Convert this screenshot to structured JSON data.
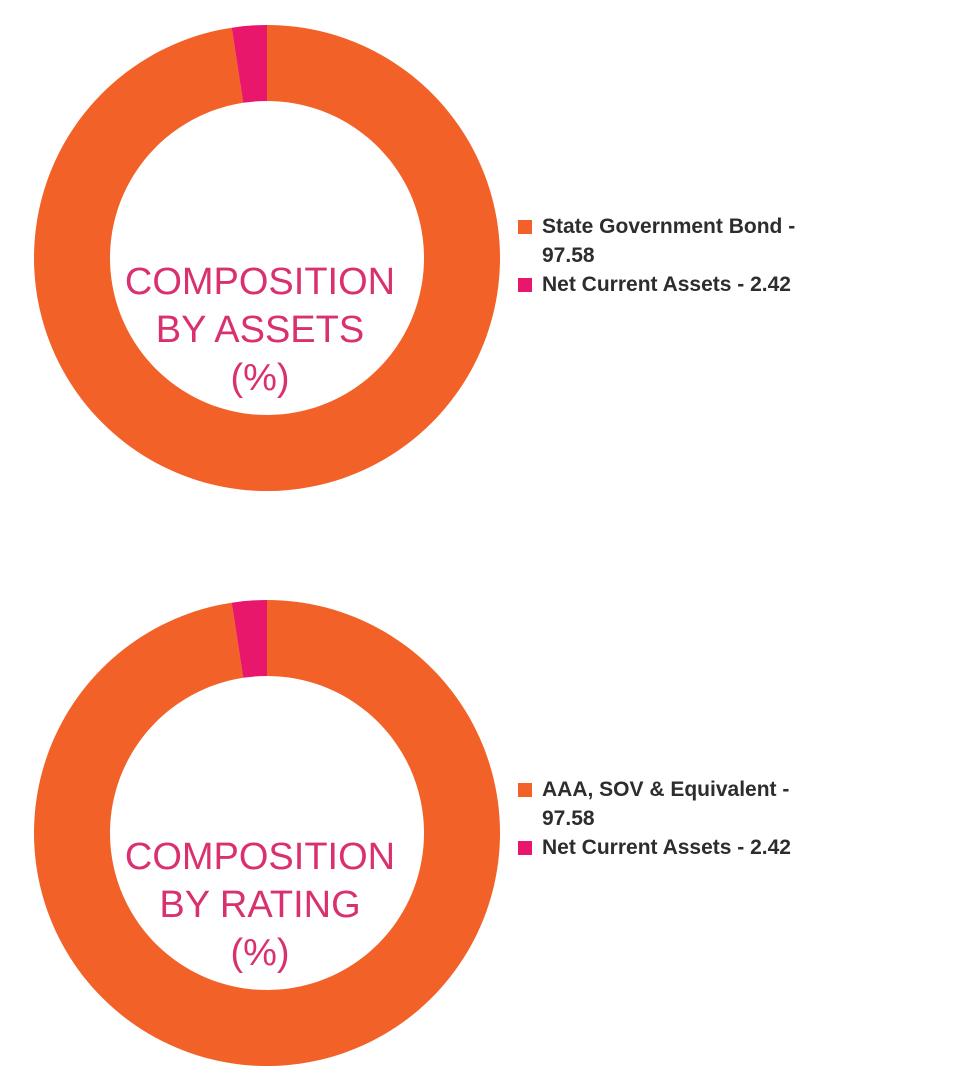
{
  "chart_data": [
    {
      "type": "pie",
      "title": "",
      "center_text": [
        "COMPOSITION",
        "BY ASSETS",
        "(%)"
      ],
      "legend_placement": "right",
      "slices": [
        {
          "label": "State Government Bond - 97.58",
          "value": 97.58,
          "color": "#f26127"
        },
        {
          "label": "Net Current Assets - 2.42",
          "value": 2.42,
          "color": "#e8176b"
        }
      ]
    },
    {
      "type": "pie",
      "title": "",
      "center_text": [
        "COMPOSITION",
        "BY RATING",
        "(%)"
      ],
      "legend_placement": "right",
      "slices": [
        {
          "label": "AAA, SOV & Equivalent - 97.58",
          "value": 97.58,
          "color": "#f26127"
        },
        {
          "label": "Net Current Assets - 2.42",
          "value": 2.42,
          "color": "#e8176b"
        }
      ]
    }
  ]
}
